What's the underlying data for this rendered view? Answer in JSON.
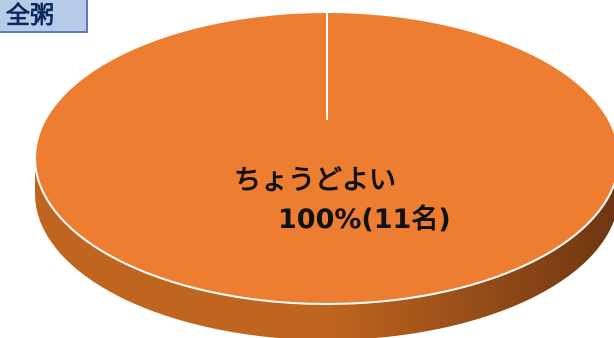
{
  "badge": {
    "label": "全粥",
    "bg_color": "#b7cbe9",
    "border_color": "#5b7fb5",
    "text_color": "#0b2a5c"
  },
  "chart_data": {
    "type": "pie",
    "style": "3d",
    "slices": [
      {
        "label": "ちょうどよい",
        "value": 100,
        "count": 11,
        "color": "#ed7d31"
      }
    ],
    "data_labels": {
      "category": "ちょうどよい",
      "value": "100%(11名)"
    },
    "colors": {
      "top": "#ed7d31",
      "side_light": "#c0651f",
      "side_dark": "#6e3512",
      "edge": "#ffffff"
    }
  }
}
